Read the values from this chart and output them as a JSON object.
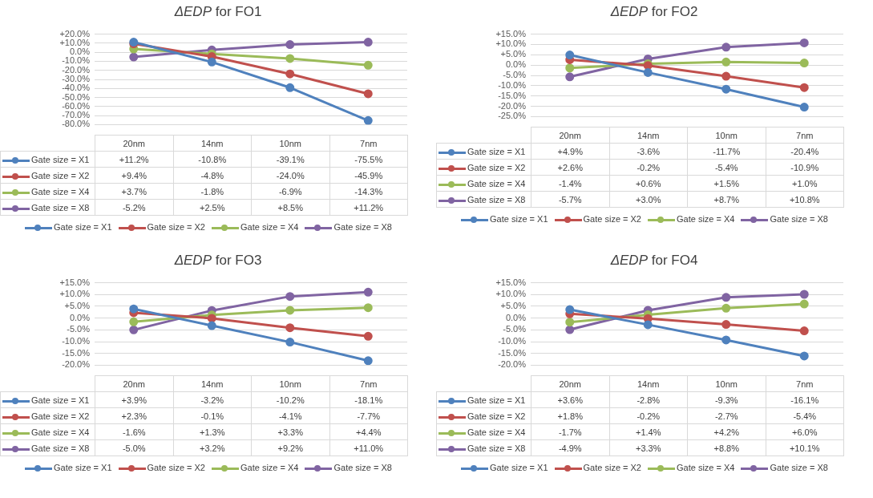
{
  "chart_data": [
    {
      "type": "line",
      "title": "ΔEDP for FO1",
      "categories": [
        "20nm",
        "14nm",
        "10nm",
        "7nm"
      ],
      "ylim": [
        -80,
        20
      ],
      "yticks": [
        {
          "value": 20,
          "label": "+20.0%"
        },
        {
          "value": 10,
          "label": "+10.0%"
        },
        {
          "value": 0,
          "label": "0.0%"
        },
        {
          "value": -10,
          "label": "-10.0%"
        },
        {
          "value": -20,
          "label": "-20.0%"
        },
        {
          "value": -30,
          "label": "-30.0%"
        },
        {
          "value": -40,
          "label": "-40.0%"
        },
        {
          "value": -50,
          "label": "-50.0%"
        },
        {
          "value": -60,
          "label": "-60.0%"
        },
        {
          "value": -70,
          "label": "-70.0%"
        },
        {
          "value": -80,
          "label": "-80.0%"
        }
      ],
      "grid": "y",
      "legend": "bottom",
      "marker": "circle",
      "tick_labels": "y",
      "series": [
        {
          "name": "Gate size = X1",
          "color": "#4f81bd",
          "values": [
            11.2,
            -10.8,
            -39.1,
            -75.5
          ],
          "value_labels": [
            "+11.2%",
            "-10.8%",
            "-39.1%",
            "-75.5%"
          ]
        },
        {
          "name": "Gate size = X2",
          "color": "#c0504d",
          "values": [
            9.4,
            -4.8,
            -24.0,
            -45.9
          ],
          "value_labels": [
            "+9.4%",
            "-4.8%",
            "-24.0%",
            "-45.9%"
          ]
        },
        {
          "name": "Gate size = X4",
          "color": "#9bbb59",
          "values": [
            3.7,
            -1.8,
            -6.9,
            -14.3
          ],
          "value_labels": [
            "+3.7%",
            "-1.8%",
            "-6.9%",
            "-14.3%"
          ]
        },
        {
          "name": "Gate size = X8",
          "color": "#8064a2",
          "values": [
            -5.2,
            2.5,
            8.5,
            11.2
          ],
          "value_labels": [
            "-5.2%",
            "+2.5%",
            "+8.5%",
            "+11.2%"
          ]
        }
      ]
    },
    {
      "type": "line",
      "title": "ΔEDP for FO2",
      "categories": [
        "20nm",
        "14nm",
        "10nm",
        "7nm"
      ],
      "ylim": [
        -25,
        15
      ],
      "yticks": [
        {
          "value": 15,
          "label": "+15.0%"
        },
        {
          "value": 10,
          "label": "+10.0%"
        },
        {
          "value": 5,
          "label": "+5.0%"
        },
        {
          "value": 0,
          "label": "0.0%"
        },
        {
          "value": -5,
          "label": "-5.0%"
        },
        {
          "value": -10,
          "label": "-10.0%"
        },
        {
          "value": -15,
          "label": "-15.0%"
        },
        {
          "value": -20,
          "label": "-20.0%"
        },
        {
          "value": -25,
          "label": "-25.0%"
        }
      ],
      "grid": "y",
      "legend": "bottom",
      "marker": "circle",
      "tick_labels": "y",
      "series": [
        {
          "name": "Gate size = X1",
          "color": "#4f81bd",
          "values": [
            4.9,
            -3.6,
            -11.7,
            -20.4
          ],
          "value_labels": [
            "+4.9%",
            "-3.6%",
            "-11.7%",
            "-20.4%"
          ]
        },
        {
          "name": "Gate size = X2",
          "color": "#c0504d",
          "values": [
            2.6,
            -0.2,
            -5.4,
            -10.9
          ],
          "value_labels": [
            "+2.6%",
            "-0.2%",
            "-5.4%",
            "-10.9%"
          ]
        },
        {
          "name": "Gate size = X4",
          "color": "#9bbb59",
          "values": [
            -1.4,
            0.6,
            1.5,
            1.0
          ],
          "value_labels": [
            "-1.4%",
            "+0.6%",
            "+1.5%",
            "+1.0%"
          ]
        },
        {
          "name": "Gate size = X8",
          "color": "#8064a2",
          "values": [
            -5.7,
            3.0,
            8.7,
            10.8
          ],
          "value_labels": [
            "-5.7%",
            "+3.0%",
            "+8.7%",
            "+10.8%"
          ]
        }
      ]
    },
    {
      "type": "line",
      "title": "ΔEDP for FO3",
      "categories": [
        "20nm",
        "14nm",
        "10nm",
        "7nm"
      ],
      "ylim": [
        -20,
        15
      ],
      "yticks": [
        {
          "value": 15,
          "label": "+15.0%"
        },
        {
          "value": 10,
          "label": "+10.0%"
        },
        {
          "value": 5,
          "label": "+5.0%"
        },
        {
          "value": 0,
          "label": "0.0%"
        },
        {
          "value": -5,
          "label": "-5.0%"
        },
        {
          "value": -10,
          "label": "-10.0%"
        },
        {
          "value": -15,
          "label": "-15.0%"
        },
        {
          "value": -20,
          "label": "-20.0%"
        }
      ],
      "grid": "y",
      "legend": "bottom",
      "marker": "circle",
      "tick_labels": "y",
      "series": [
        {
          "name": "Gate size = X1",
          "color": "#4f81bd",
          "values": [
            3.9,
            -3.2,
            -10.2,
            -18.1
          ],
          "value_labels": [
            "+3.9%",
            "-3.2%",
            "-10.2%",
            "-18.1%"
          ]
        },
        {
          "name": "Gate size = X2",
          "color": "#c0504d",
          "values": [
            2.3,
            -0.1,
            -4.1,
            -7.7
          ],
          "value_labels": [
            "+2.3%",
            "-0.1%",
            "-4.1%",
            "-7.7%"
          ]
        },
        {
          "name": "Gate size = X4",
          "color": "#9bbb59",
          "values": [
            -1.6,
            1.3,
            3.3,
            4.4
          ],
          "value_labels": [
            "-1.6%",
            "+1.3%",
            "+3.3%",
            "+4.4%"
          ]
        },
        {
          "name": "Gate size = X8",
          "color": "#8064a2",
          "values": [
            -5.0,
            3.2,
            9.2,
            11.0
          ],
          "value_labels": [
            "-5.0%",
            "+3.2%",
            "+9.2%",
            "+11.0%"
          ]
        }
      ]
    },
    {
      "type": "line",
      "title": "ΔEDP for FO4",
      "categories": [
        "20nm",
        "14nm",
        "10nm",
        "7nm"
      ],
      "ylim": [
        -20,
        15
      ],
      "yticks": [
        {
          "value": 15,
          "label": "+15.0%"
        },
        {
          "value": 10,
          "label": "+10.0%"
        },
        {
          "value": 5,
          "label": "+5.0%"
        },
        {
          "value": 0,
          "label": "0.0%"
        },
        {
          "value": -5,
          "label": "-5.0%"
        },
        {
          "value": -10,
          "label": "-10.0%"
        },
        {
          "value": -15,
          "label": "-15.0%"
        },
        {
          "value": -20,
          "label": "-20.0%"
        }
      ],
      "grid": "y",
      "legend": "bottom",
      "marker": "circle",
      "tick_labels": "y",
      "series": [
        {
          "name": "Gate size = X1",
          "color": "#4f81bd",
          "values": [
            3.6,
            -2.8,
            -9.3,
            -16.1
          ],
          "value_labels": [
            "+3.6%",
            "-2.8%",
            "-9.3%",
            "-16.1%"
          ]
        },
        {
          "name": "Gate size = X2",
          "color": "#c0504d",
          "values": [
            1.8,
            -0.2,
            -2.7,
            -5.4
          ],
          "value_labels": [
            "+1.8%",
            "-0.2%",
            "-2.7%",
            "-5.4%"
          ]
        },
        {
          "name": "Gate size = X4",
          "color": "#9bbb59",
          "values": [
            -1.7,
            1.4,
            4.2,
            6.0
          ],
          "value_labels": [
            "-1.7%",
            "+1.4%",
            "+4.2%",
            "+6.0%"
          ]
        },
        {
          "name": "Gate size = X8",
          "color": "#8064a2",
          "values": [
            -4.9,
            3.3,
            8.8,
            10.1
          ],
          "value_labels": [
            "-4.9%",
            "+3.3%",
            "+8.8%",
            "+10.1%"
          ]
        }
      ]
    }
  ]
}
